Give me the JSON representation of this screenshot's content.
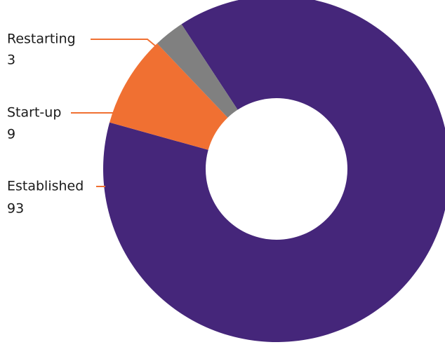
{
  "chart_data": {
    "type": "pie",
    "donut": true,
    "slices": [
      {
        "label": "Established",
        "value": 93,
        "color": "#45267a"
      },
      {
        "label": "Start-up",
        "value": 9,
        "color": "#f07032"
      },
      {
        "label": "Restarting",
        "value": 3,
        "color": "#808080"
      }
    ],
    "leader_line_color": "#f07032",
    "legend": "none (inline callout labels on left)"
  }
}
